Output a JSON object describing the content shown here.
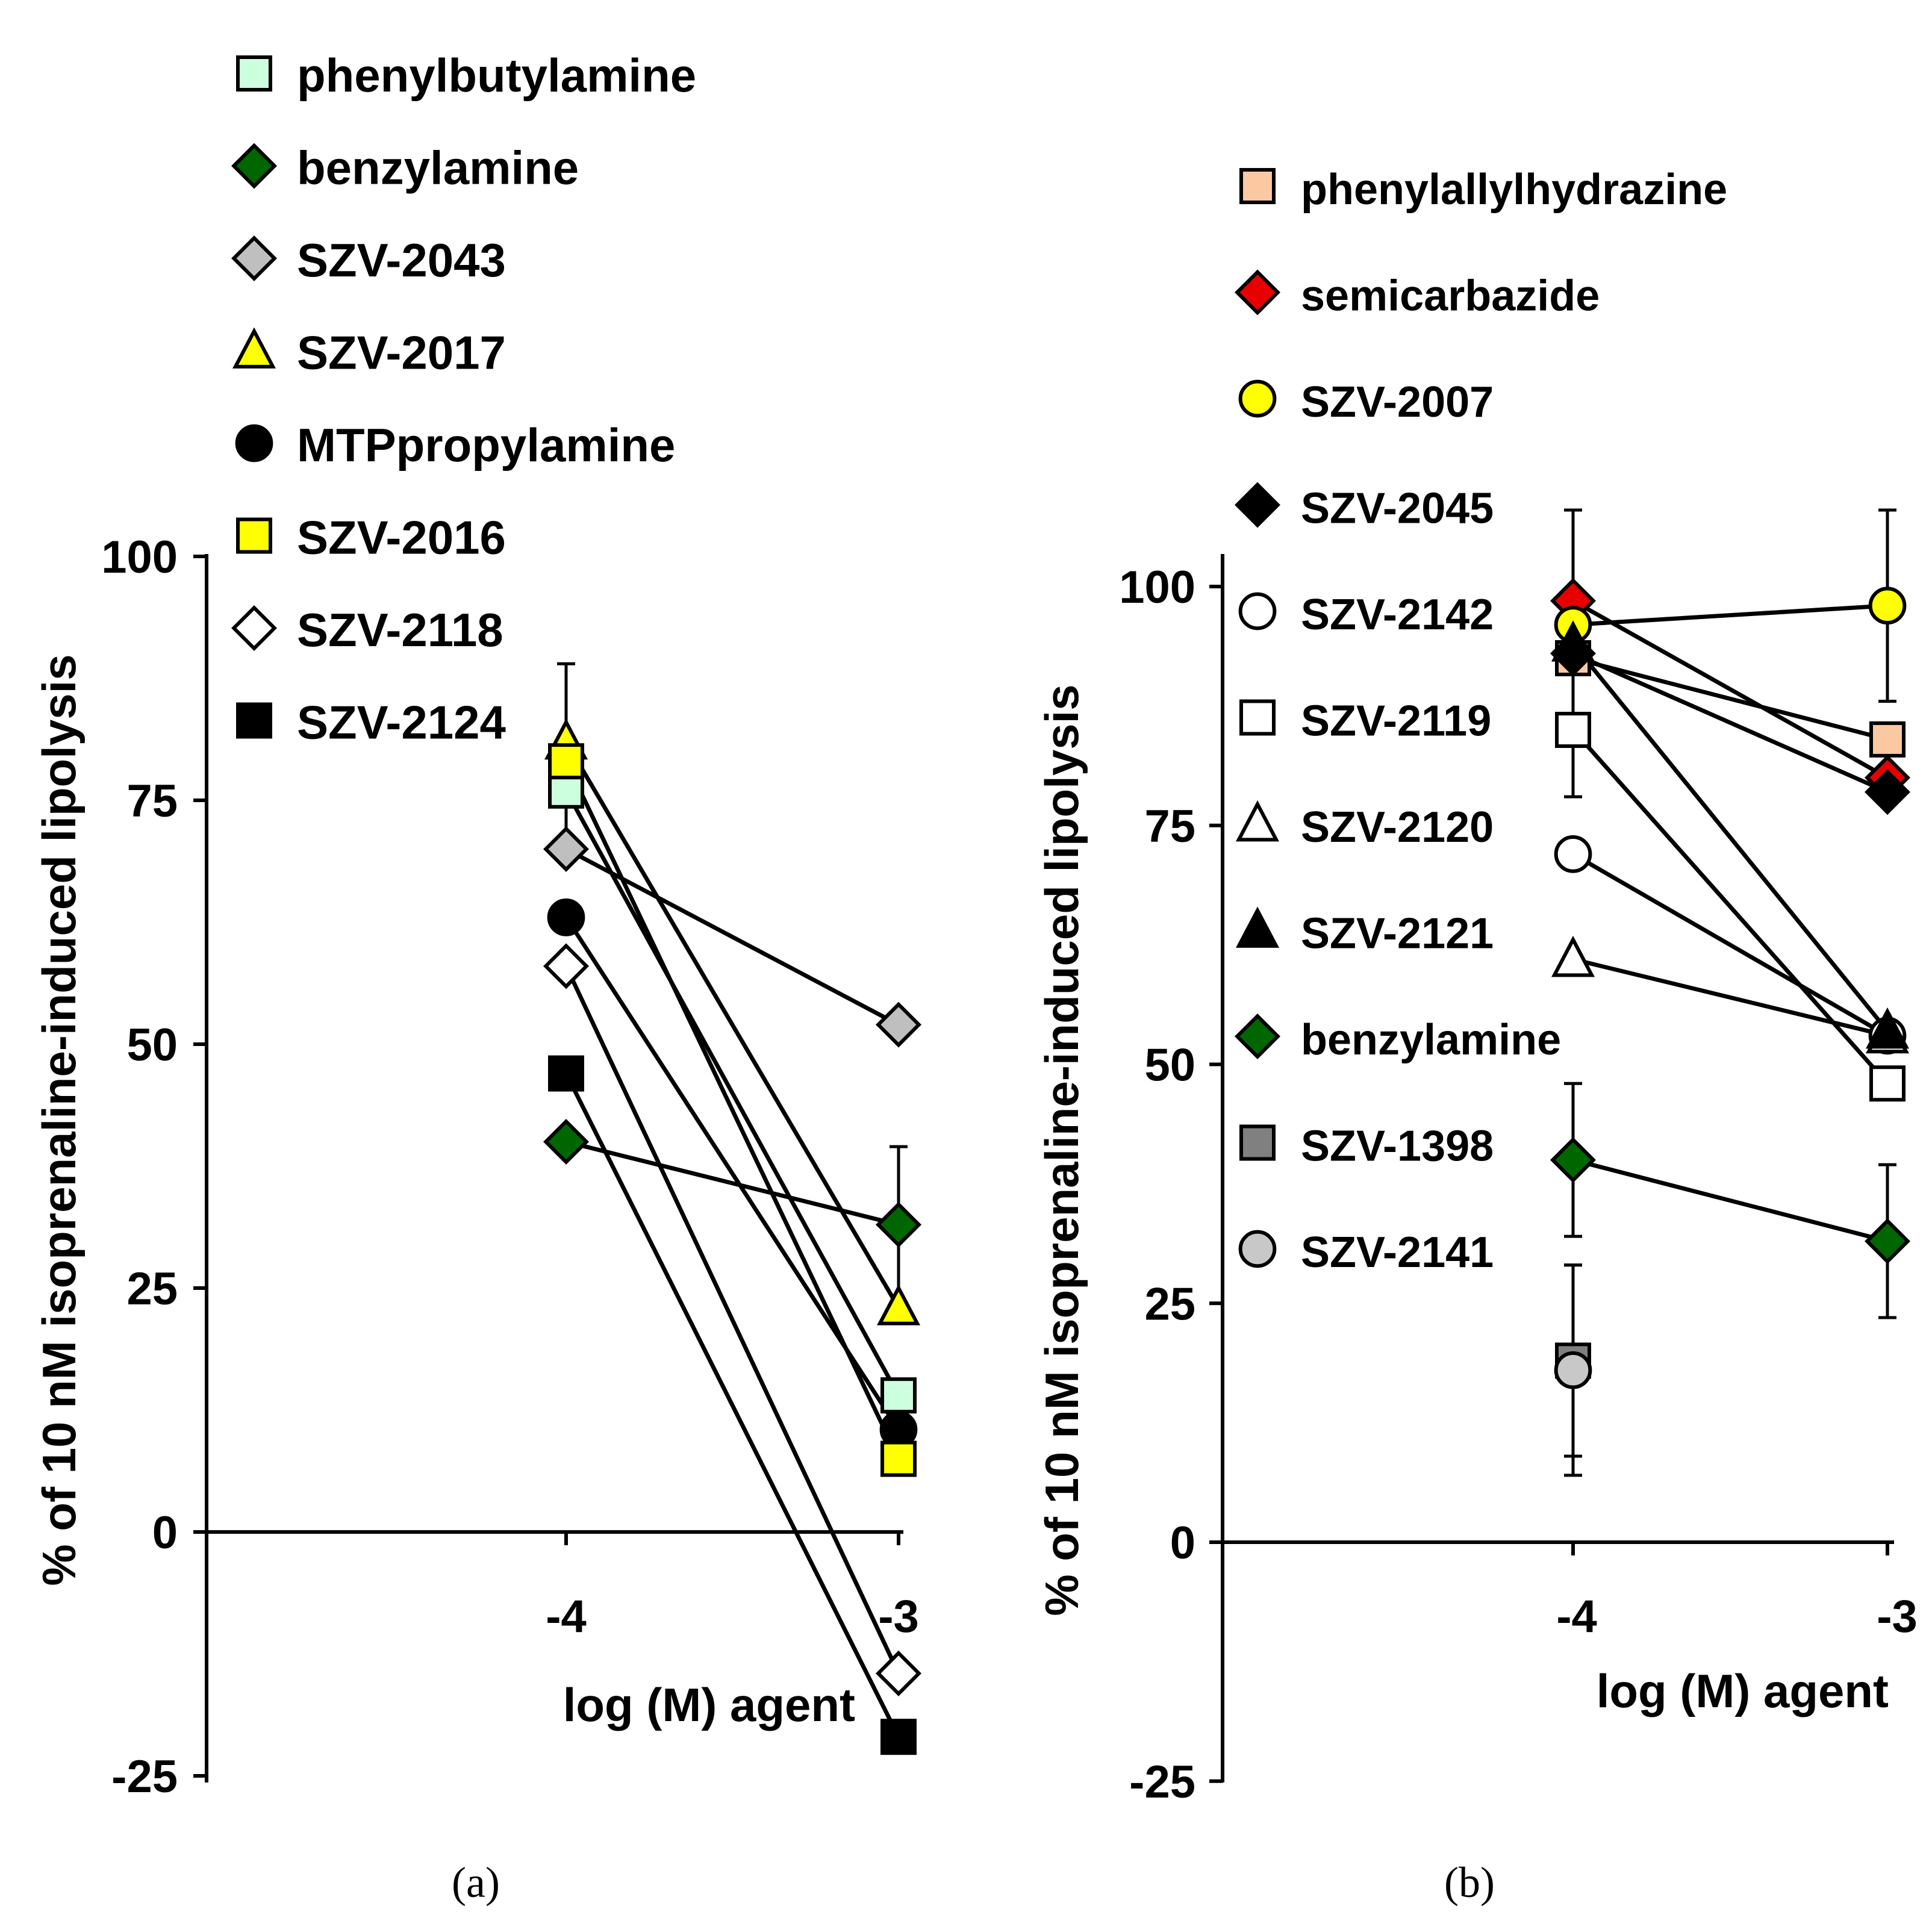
{
  "chart_data": [
    {
      "type": "line",
      "panel_label": "(a)",
      "xlabel": "log (M) agent",
      "ylabel": "% of 10 nM isoprenaline-induced lipolysis",
      "x": [
        -4,
        -3
      ],
      "x_tick_labels": [
        "-4",
        "-3"
      ],
      "y_ticks": [
        100,
        75,
        50,
        25,
        0,
        -25
      ],
      "y_tick_labels": [
        "100",
        "75",
        "50",
        "25",
        "0",
        "-25"
      ],
      "ylim": [
        -25,
        100
      ],
      "legend_position": "top-left",
      "series": [
        {
          "name": "phenylbutylamine",
          "marker": "square",
          "fill": "#CCFFDD",
          "values": [
            76,
            14
          ],
          "err": [
            0,
            0
          ]
        },
        {
          "name": "benzylamine",
          "marker": "diamond",
          "fill": "#006600",
          "values": [
            40,
            31.5
          ],
          "err": [
            0,
            8
          ]
        },
        {
          "name": "SZV-2043",
          "marker": "diamond",
          "fill": "#BFBFBF",
          "values": [
            70,
            52
          ],
          "err": [
            0,
            0
          ]
        },
        {
          "name": "SZV-2017",
          "marker": "triangle",
          "fill": "#FFFF00",
          "values": [
            81,
            23
          ],
          "err": [
            0,
            0
          ]
        },
        {
          "name": "MTPpropylamine",
          "marker": "circle",
          "fill": "#000000",
          "values": [
            63,
            10.5
          ],
          "err": [
            0,
            0
          ]
        },
        {
          "name": "SZV-2016",
          "marker": "square",
          "fill": "#FFFF00",
          "values": [
            79,
            7.5
          ],
          "err": [
            10,
            0
          ]
        },
        {
          "name": "SZV-2118",
          "marker": "diamond",
          "fill": "#FFFFFF",
          "values": [
            58,
            -14.5
          ],
          "err": [
            0,
            0
          ]
        },
        {
          "name": "SZV-2124",
          "marker": "square",
          "fill": "#000000",
          "values": [
            47,
            -21
          ],
          "err": [
            0,
            0
          ]
        }
      ]
    },
    {
      "type": "line",
      "panel_label": "(b)",
      "xlabel": "log (M) agent",
      "ylabel": "% of 10 nM isoprenaline-induced lipolysis",
      "x": [
        -4,
        -3
      ],
      "x_tick_labels": [
        "-4",
        "-3"
      ],
      "y_ticks": [
        100,
        75,
        50,
        25,
        0,
        -25
      ],
      "y_tick_labels": [
        "100",
        "75",
        "50",
        "25",
        "0",
        "-25"
      ],
      "ylim": [
        -25,
        100
      ],
      "legend_position": "top-left",
      "series": [
        {
          "name": "phenylallylhydrazine",
          "marker": "square",
          "fill": "#FBC9A1",
          "values": [
            92.5,
            84
          ],
          "err": [
            0,
            0
          ]
        },
        {
          "name": "semicarbazide",
          "marker": "diamond",
          "fill": "#E60000",
          "values": [
            98.5,
            80
          ],
          "err": [
            0,
            0
          ]
        },
        {
          "name": "SZV-2007",
          "marker": "circle",
          "fill": "#FFFF00",
          "values": [
            96,
            98
          ],
          "err": [
            0,
            10
          ]
        },
        {
          "name": "SZV-2045",
          "marker": "diamond",
          "fill": "#000000",
          "values": [
            93,
            78.5
          ],
          "err": [
            15,
            0
          ]
        },
        {
          "name": "SZV-2142",
          "marker": "circle",
          "fill": "#FFFFFF",
          "values": [
            72,
            53
          ],
          "err": [
            0,
            0
          ]
        },
        {
          "name": "SZV-2119",
          "marker": "square",
          "fill": "#FFFFFF",
          "values": [
            85,
            48
          ],
          "err": [
            0,
            0
          ]
        },
        {
          "name": "SZV-2120",
          "marker": "triangle",
          "fill": "#FFFFFF",
          "values": [
            61,
            53
          ],
          "err": [
            0,
            0
          ]
        },
        {
          "name": "SZV-2121",
          "marker": "triangle",
          "fill": "#000000",
          "values": [
            94,
            53.5
          ],
          "err": [
            0,
            0
          ]
        },
        {
          "name": "benzylamine",
          "marker": "diamond",
          "fill": "#006600",
          "values": [
            40,
            31.5
          ],
          "err": [
            8,
            8
          ]
        },
        {
          "name": "SZV-1398",
          "marker": "square",
          "fill": "#808080",
          "values": [
            19,
            null
          ],
          "err": [
            10,
            0
          ]
        },
        {
          "name": "SZV-2141",
          "marker": "circle",
          "fill": "#C8C8C8",
          "values": [
            18,
            null
          ],
          "err": [
            11,
            0
          ]
        }
      ]
    }
  ]
}
